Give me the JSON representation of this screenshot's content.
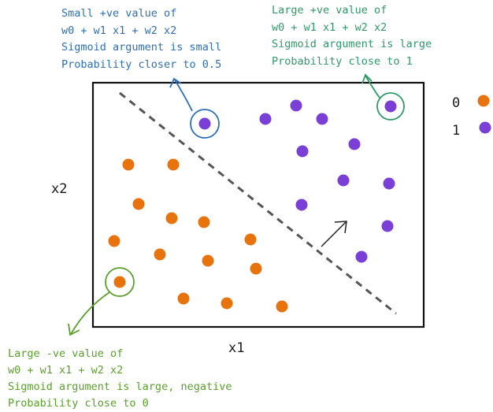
{
  "axes": {
    "x_label": "x1",
    "y_label": "x2"
  },
  "legend": [
    {
      "label": "0",
      "color": "#e8720c"
    },
    {
      "label": "1",
      "color": "#7a3fd6"
    }
  ],
  "colors": {
    "class0": "#e8720c",
    "class1": "#7a3fd6",
    "blue_annotation": "#2f6fb5",
    "green_annotation": "#2e9a6a",
    "lime_annotation": "#5aa02c",
    "boundary": "#555555"
  },
  "annotations": {
    "top_left": [
      "Small +ve value of",
      "w0 + w1 x1 + w2 x2",
      "Sigmoid argument is small",
      "Probability closer to 0.5"
    ],
    "top_right": [
      "Large +ve value of",
      "w0 + w1 x1 + w2 x2",
      "Sigmoid argument is large",
      "Probability close to 1"
    ],
    "bottom_left": [
      "Large -ve value of",
      "w0 + w1 x1 + w2 x2",
      "Sigmoid argument is large, negative",
      "Probability close to 0"
    ]
  }
}
